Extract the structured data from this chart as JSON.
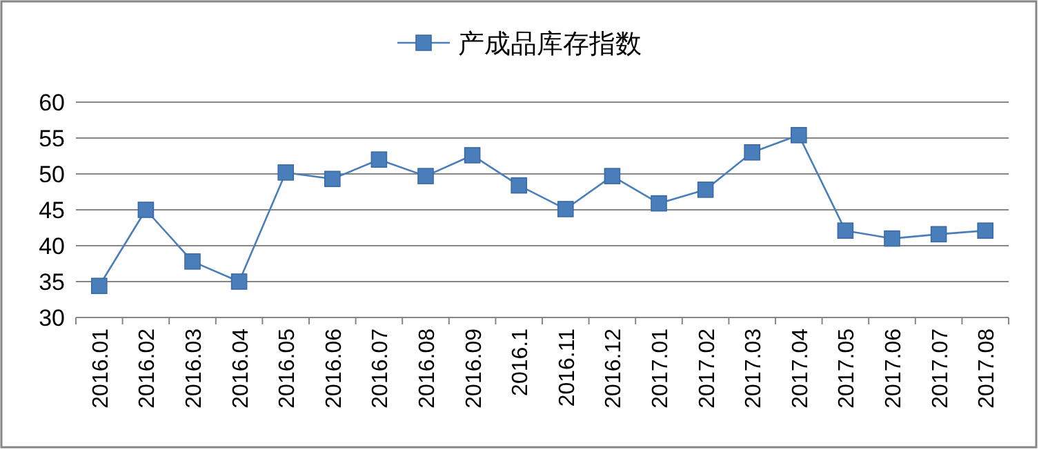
{
  "chart_data": {
    "type": "line",
    "categories": [
      "2016.01",
      "2016.02",
      "2016.03",
      "2016.04",
      "2016.05",
      "2016.06",
      "2016.07",
      "2016.08",
      "2016.09",
      "2016.1",
      "2016.11",
      "2016.12",
      "2017.01",
      "2017.02",
      "2017.03",
      "2017.04",
      "2017.05",
      "2017.06",
      "2017.07",
      "2017.08"
    ],
    "series": [
      {
        "name": "产成品库存指数",
        "color": "#4a7ebb",
        "values": [
          34.4,
          45,
          37.8,
          35,
          50.2,
          49.3,
          52,
          49.7,
          52.6,
          48.4,
          45.1,
          49.7,
          45.9,
          47.8,
          53,
          55.4,
          42.1,
          41,
          41.6,
          42.1
        ]
      }
    ],
    "ylim": [
      30,
      60
    ],
    "yticks": [
      30,
      35,
      40,
      45,
      50,
      55,
      60
    ],
    "grid": "y",
    "legend": "top",
    "marker": "square",
    "line_style": "solid"
  }
}
